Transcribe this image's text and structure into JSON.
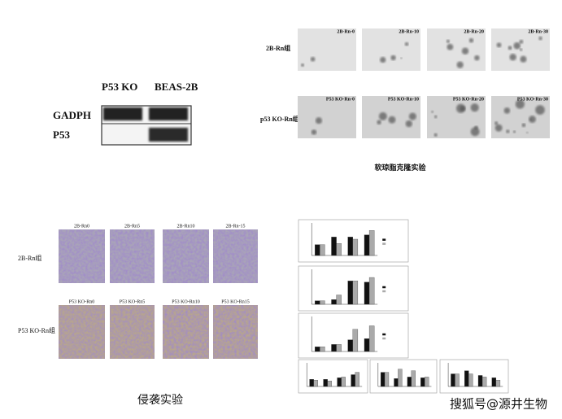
{
  "western_blot": {
    "columns": [
      "P53 KO",
      "BEAS-2B"
    ],
    "rows": [
      "GADPH",
      "P53"
    ]
  },
  "soft_agar": {
    "row_labels": [
      "2B-Rn组",
      "p53 KO-Rn组"
    ],
    "panels": [
      [
        "2B-Rn-0",
        "2B-Rn-10",
        "2B-Rn-20",
        "2B-Rn-30"
      ],
      [
        "P53 KO-Rn-0",
        "P53 KO-Rn-10",
        "P53 KO-Rn-20",
        "P53 KO-Rn-30"
      ]
    ],
    "caption": "软琼脂克隆实验"
  },
  "invasion": {
    "row_labels": [
      "2B-Rn组",
      "P53 KO-Rn组"
    ],
    "panels": [
      [
        "2B-Rn0",
        "2B-Rn5",
        "2B-Rn10",
        "2B-Rn-15"
      ],
      [
        "P53 KO-Rn0",
        "P53 KO-Rn5",
        "P53 KO-Rn10",
        "P53 KO-Rn15"
      ]
    ],
    "caption": "侵袭实验"
  },
  "charts": [
    {
      "type": "bar",
      "ylim": [
        0,
        1.5
      ],
      "series": [
        {
          "color": "#111111",
          "values": [
            0.5,
            0.85,
            0.85,
            0.95
          ]
        },
        {
          "color": "#aaaaaa",
          "values": [
            0.5,
            0.55,
            0.75,
            1.15
          ]
        }
      ]
    },
    {
      "type": "bar",
      "ylim": [
        0,
        1.5
      ],
      "series": [
        {
          "color": "#111111",
          "values": [
            0.15,
            0.2,
            1.0,
            0.95
          ]
        },
        {
          "color": "#aaaaaa",
          "values": [
            0.15,
            0.4,
            1.0,
            1.15
          ]
        }
      ]
    },
    {
      "type": "bar",
      "ylim": [
        0,
        1.5
      ],
      "series": [
        {
          "color": "#111111",
          "values": [
            0.2,
            0.3,
            0.5,
            0.55
          ]
        },
        {
          "color": "#aaaaaa",
          "values": [
            0.2,
            0.3,
            0.95,
            1.1
          ]
        }
      ]
    },
    {
      "type": "bar",
      "ylim": [
        0,
        1.5
      ],
      "series": [
        {
          "color": "#111111",
          "values": [
            0.45,
            0.45,
            0.55,
            0.75
          ]
        },
        {
          "color": "#aaaaaa",
          "values": [
            0.4,
            0.35,
            0.6,
            0.9
          ]
        }
      ]
    },
    {
      "type": "bar",
      "ylim": [
        0,
        1.5
      ],
      "series": [
        {
          "color": "#111111",
          "values": [
            0.9,
            0.5,
            0.6,
            0.55
          ]
        },
        {
          "color": "#aaaaaa",
          "values": [
            0.9,
            1.1,
            1.0,
            0.6
          ]
        }
      ]
    },
    {
      "type": "bar",
      "ylim": [
        0,
        1.5
      ],
      "series": [
        {
          "color": "#111111",
          "values": [
            0.8,
            1.0,
            0.7,
            0.55
          ]
        },
        {
          "color": "#aaaaaa",
          "values": [
            0.8,
            0.8,
            0.6,
            0.4
          ]
        }
      ]
    }
  ],
  "watermark": "搜狐号@源井生物"
}
